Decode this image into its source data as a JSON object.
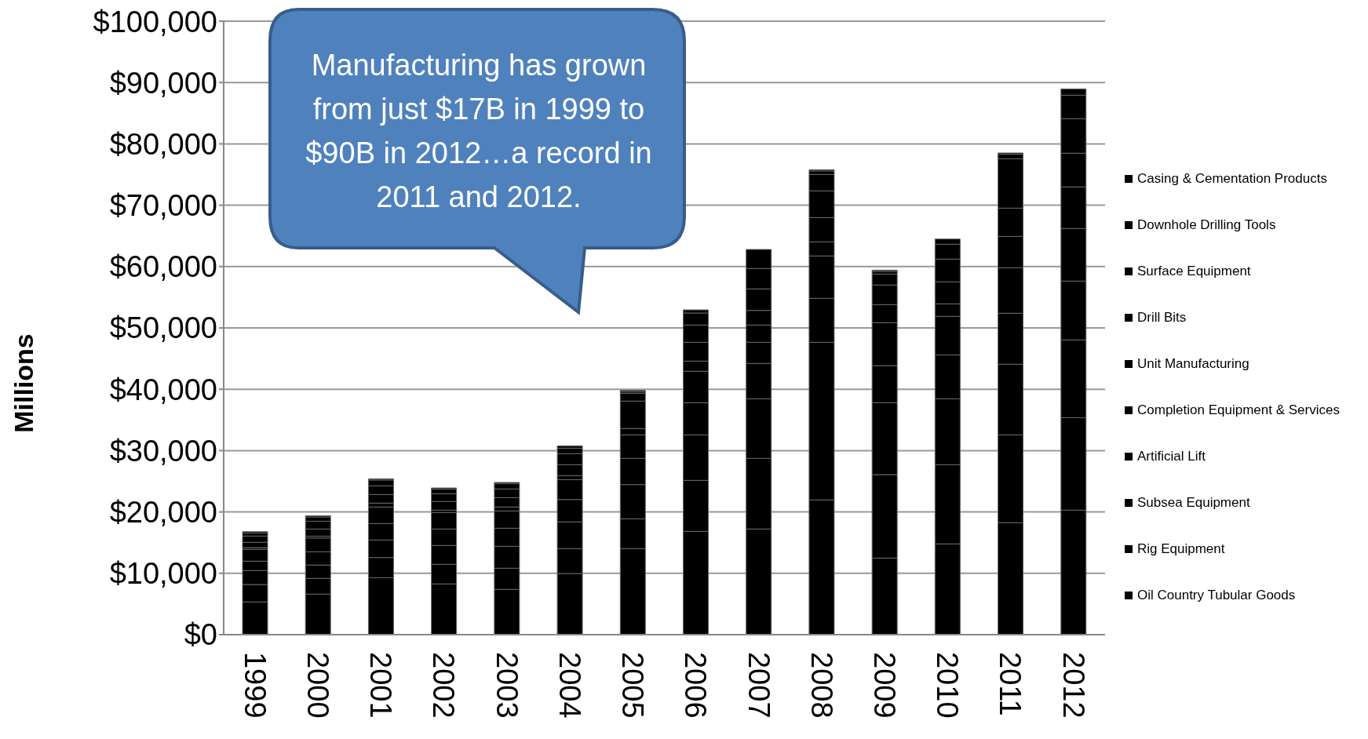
{
  "chart_data": {
    "type": "bar",
    "stacked": true,
    "ylabel": "Millions",
    "categories": [
      "1999",
      "2000",
      "2001",
      "2002",
      "2003",
      "2004",
      "2005",
      "2006",
      "2007",
      "2008",
      "2009",
      "2010",
      "2011",
      "2012"
    ],
    "series": [
      {
        "name": "Oil Country Tubular Goods",
        "color": "#000000",
        "values": [
          5330,
          6610,
          9290,
          8270,
          7380,
          9970,
          14030,
          16840,
          17220,
          21960,
          12490,
          14800,
          18250,
          20290
        ]
      },
      {
        "name": "Rig Equipment",
        "color": "#000000",
        "values": [
          2850,
          2560,
          3280,
          3200,
          3450,
          4060,
          4860,
          8310,
          11510,
          25700,
          13600,
          12910,
          14320,
          15090
        ]
      },
      {
        "name": "Subsea Equipment",
        "color": "#000000",
        "values": [
          2270,
          2170,
          2860,
          3070,
          3580,
          4350,
          5580,
          7420,
          9720,
          7160,
          11720,
          10740,
          11510,
          12660
        ]
      },
      {
        "name": "Artificial Lift",
        "color": "#000000",
        "values": [
          1530,
          2170,
          2690,
          2680,
          2940,
          3650,
          4270,
          5240,
          5760,
          6910,
          6050,
          7160,
          8310,
          9590
        ]
      },
      {
        "name": "Completion Equipment & Services",
        "color": "#000000",
        "values": [
          1920,
          2250,
          2690,
          2690,
          2820,
          3250,
          3830,
          5120,
          3450,
          2300,
          7000,
          6270,
          7420,
          8570
        ]
      },
      {
        "name": "Unit Manufacturing",
        "color": "#000000",
        "values": [
          290,
          300,
          630,
          380,
          640,
          640,
          1030,
          1660,
          2810,
          3960,
          2940,
          2050,
          5110,
          6780
        ]
      },
      {
        "name": "Drill Bits",
        "color": "#000000",
        "values": [
          860,
          1160,
          1410,
          1410,
          1530,
          1790,
          4470,
          3070,
          2380,
          4350,
          3200,
          3580,
          4610,
          5500
        ]
      },
      {
        "name": "Surface Equipment",
        "color": "#000000",
        "values": [
          1020,
          1270,
          1410,
          1280,
          1410,
          1790,
          1280,
          2810,
          3510,
          2680,
          1780,
          3710,
          8050,
          5620
        ]
      },
      {
        "name": "Downhole Drilling Tools",
        "color": "#000000",
        "values": [
          520,
          700,
          950,
          730,
          860,
          900,
          260,
          1960,
          3320,
          570,
          440,
          2420,
          740,
          3840
        ]
      },
      {
        "name": "Casing & Cementation Products",
        "color": "#000000",
        "values": [
          200,
          200,
          200,
          200,
          200,
          380,
          200,
          510,
          3110,
          200,
          200,
          850,
          200,
          1020
        ]
      }
    ],
    "ylim": [
      0,
      100000
    ],
    "yticks": [
      {
        "value": 0,
        "label": "$0"
      },
      {
        "value": 10000,
        "label": "$10,000"
      },
      {
        "value": 20000,
        "label": "$20,000"
      },
      {
        "value": 30000,
        "label": "$30,000"
      },
      {
        "value": 40000,
        "label": "$40,000"
      },
      {
        "value": 50000,
        "label": "$50,000"
      },
      {
        "value": 60000,
        "label": "$60,000"
      },
      {
        "value": 70000,
        "label": "$70,000"
      },
      {
        "value": 80000,
        "label": "$80,000"
      },
      {
        "value": 90000,
        "label": "$90,000"
      },
      {
        "value": 100000,
        "label": "$100,000"
      }
    ],
    "grid": "y",
    "legend": "right",
    "annotations": [
      "Manufacturing has grown from just $17B in 1999 to $90B in 2012…a record in 2011 and 2012."
    ]
  }
}
